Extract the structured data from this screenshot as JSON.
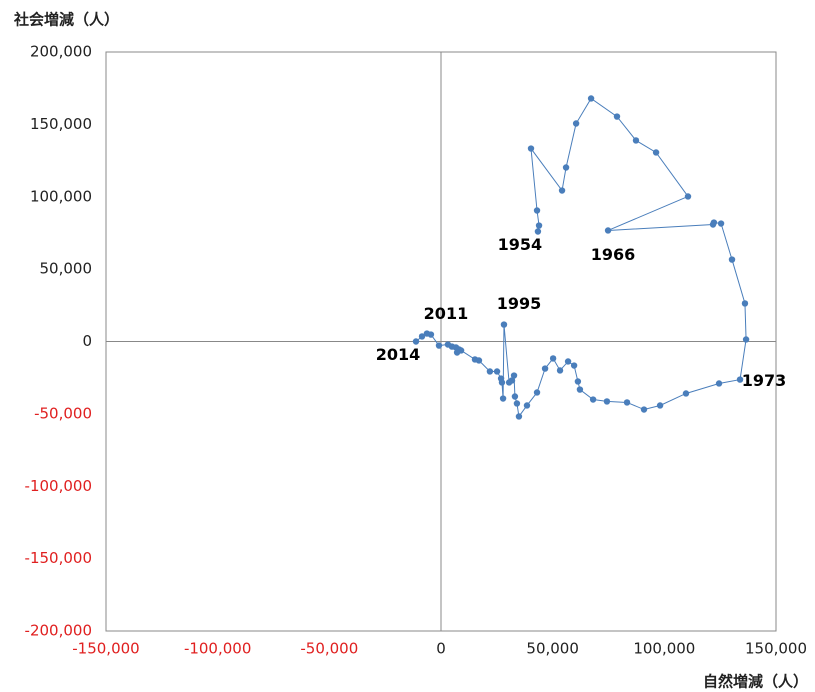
{
  "chart_data": {
    "type": "scatter",
    "y_label": "社会増減（人）",
    "x_label": "自然増減（人）",
    "xlim": [
      -150000,
      150000
    ],
    "ylim": [
      -200000,
      200000
    ],
    "xticks": [
      {
        "value": -150000,
        "label": "-150,000"
      },
      {
        "value": -100000,
        "label": "-100,000"
      },
      {
        "value": -50000,
        "label": "-50,000"
      },
      0,
      {
        "value": 50000,
        "label": "50,000"
      },
      {
        "value": 100000,
        "label": "100,000"
      },
      {
        "value": 150000,
        "label": "150,000"
      }
    ],
    "yticks": [
      {
        "value": -200000,
        "label": "-200,000"
      },
      {
        "value": -150000,
        "label": "-150,000"
      },
      {
        "value": -100000,
        "label": "-100,000"
      },
      {
        "value": -50000,
        "label": "-50,000"
      },
      0,
      {
        "value": 50000,
        "label": "50,000"
      },
      {
        "value": 100000,
        "label": "100,000"
      },
      {
        "value": 150000,
        "label": "150,000"
      },
      {
        "value": 200000,
        "label": "200,000"
      }
    ],
    "negative_tick_color": "#e02020",
    "connected": true,
    "series": [
      {
        "color": "#4a7ebb",
        "x": [
          43400,
          43900,
          43000,
          40300,
          54200,
          56000,
          60500,
          67200,
          78800,
          87300,
          96300,
          110600,
          74800,
          121800,
          122200,
          125400,
          130300,
          136100,
          136600,
          133900,
          124500,
          109700,
          98100,
          90900,
          83300,
          74300,
          68100,
          62200,
          61300,
          59600,
          56900,
          53300,
          50200,
          46600,
          43000,
          38500,
          34900,
          34000,
          33100,
          32700,
          31800,
          30500,
          28200,
          27800,
          27300,
          26900,
          25100,
          21900,
          17000,
          15200,
          9000,
          8100,
          7200,
          6700,
          4900,
          3100,
          -900,
          -4500,
          -6300,
          -8500,
          -11200
        ],
        "values": [
          76000,
          80100,
          90500,
          133300,
          104300,
          120200,
          150600,
          167900,
          155400,
          138900,
          130600,
          100200,
          76700,
          80800,
          82200,
          81500,
          56600,
          26300,
          1400,
          -26300,
          -29000,
          -35900,
          -44200,
          -47000,
          -42100,
          -41400,
          -40100,
          -33200,
          -27600,
          -16600,
          -13800,
          -20000,
          -11700,
          -18700,
          -35200,
          -44200,
          -51800,
          -42800,
          -38000,
          -23500,
          -26900,
          -28300,
          11700,
          -39400,
          -28300,
          -25600,
          -20700,
          -20700,
          -13100,
          -12400,
          -6200,
          -5500,
          -7600,
          -4100,
          -3500,
          -2100,
          -2800,
          4800,
          5500,
          3500,
          0
        ]
      }
    ],
    "annotations": [
      {
        "text": "1954",
        "x": 43400,
        "y": 76000,
        "position": "below-left"
      },
      {
        "text": "1966",
        "x": 74800,
        "y": 76700,
        "position": "below"
      },
      {
        "text": "1973",
        "x": 133900,
        "y": -26300,
        "position": "right"
      },
      {
        "text": "1995",
        "x": 28200,
        "y": 11700,
        "position": "above"
      },
      {
        "text": "2011",
        "x": -4500,
        "y": 4800,
        "position": "above"
      },
      {
        "text": "2014",
        "x": -11200,
        "y": 0,
        "position": "below-left"
      }
    ]
  }
}
